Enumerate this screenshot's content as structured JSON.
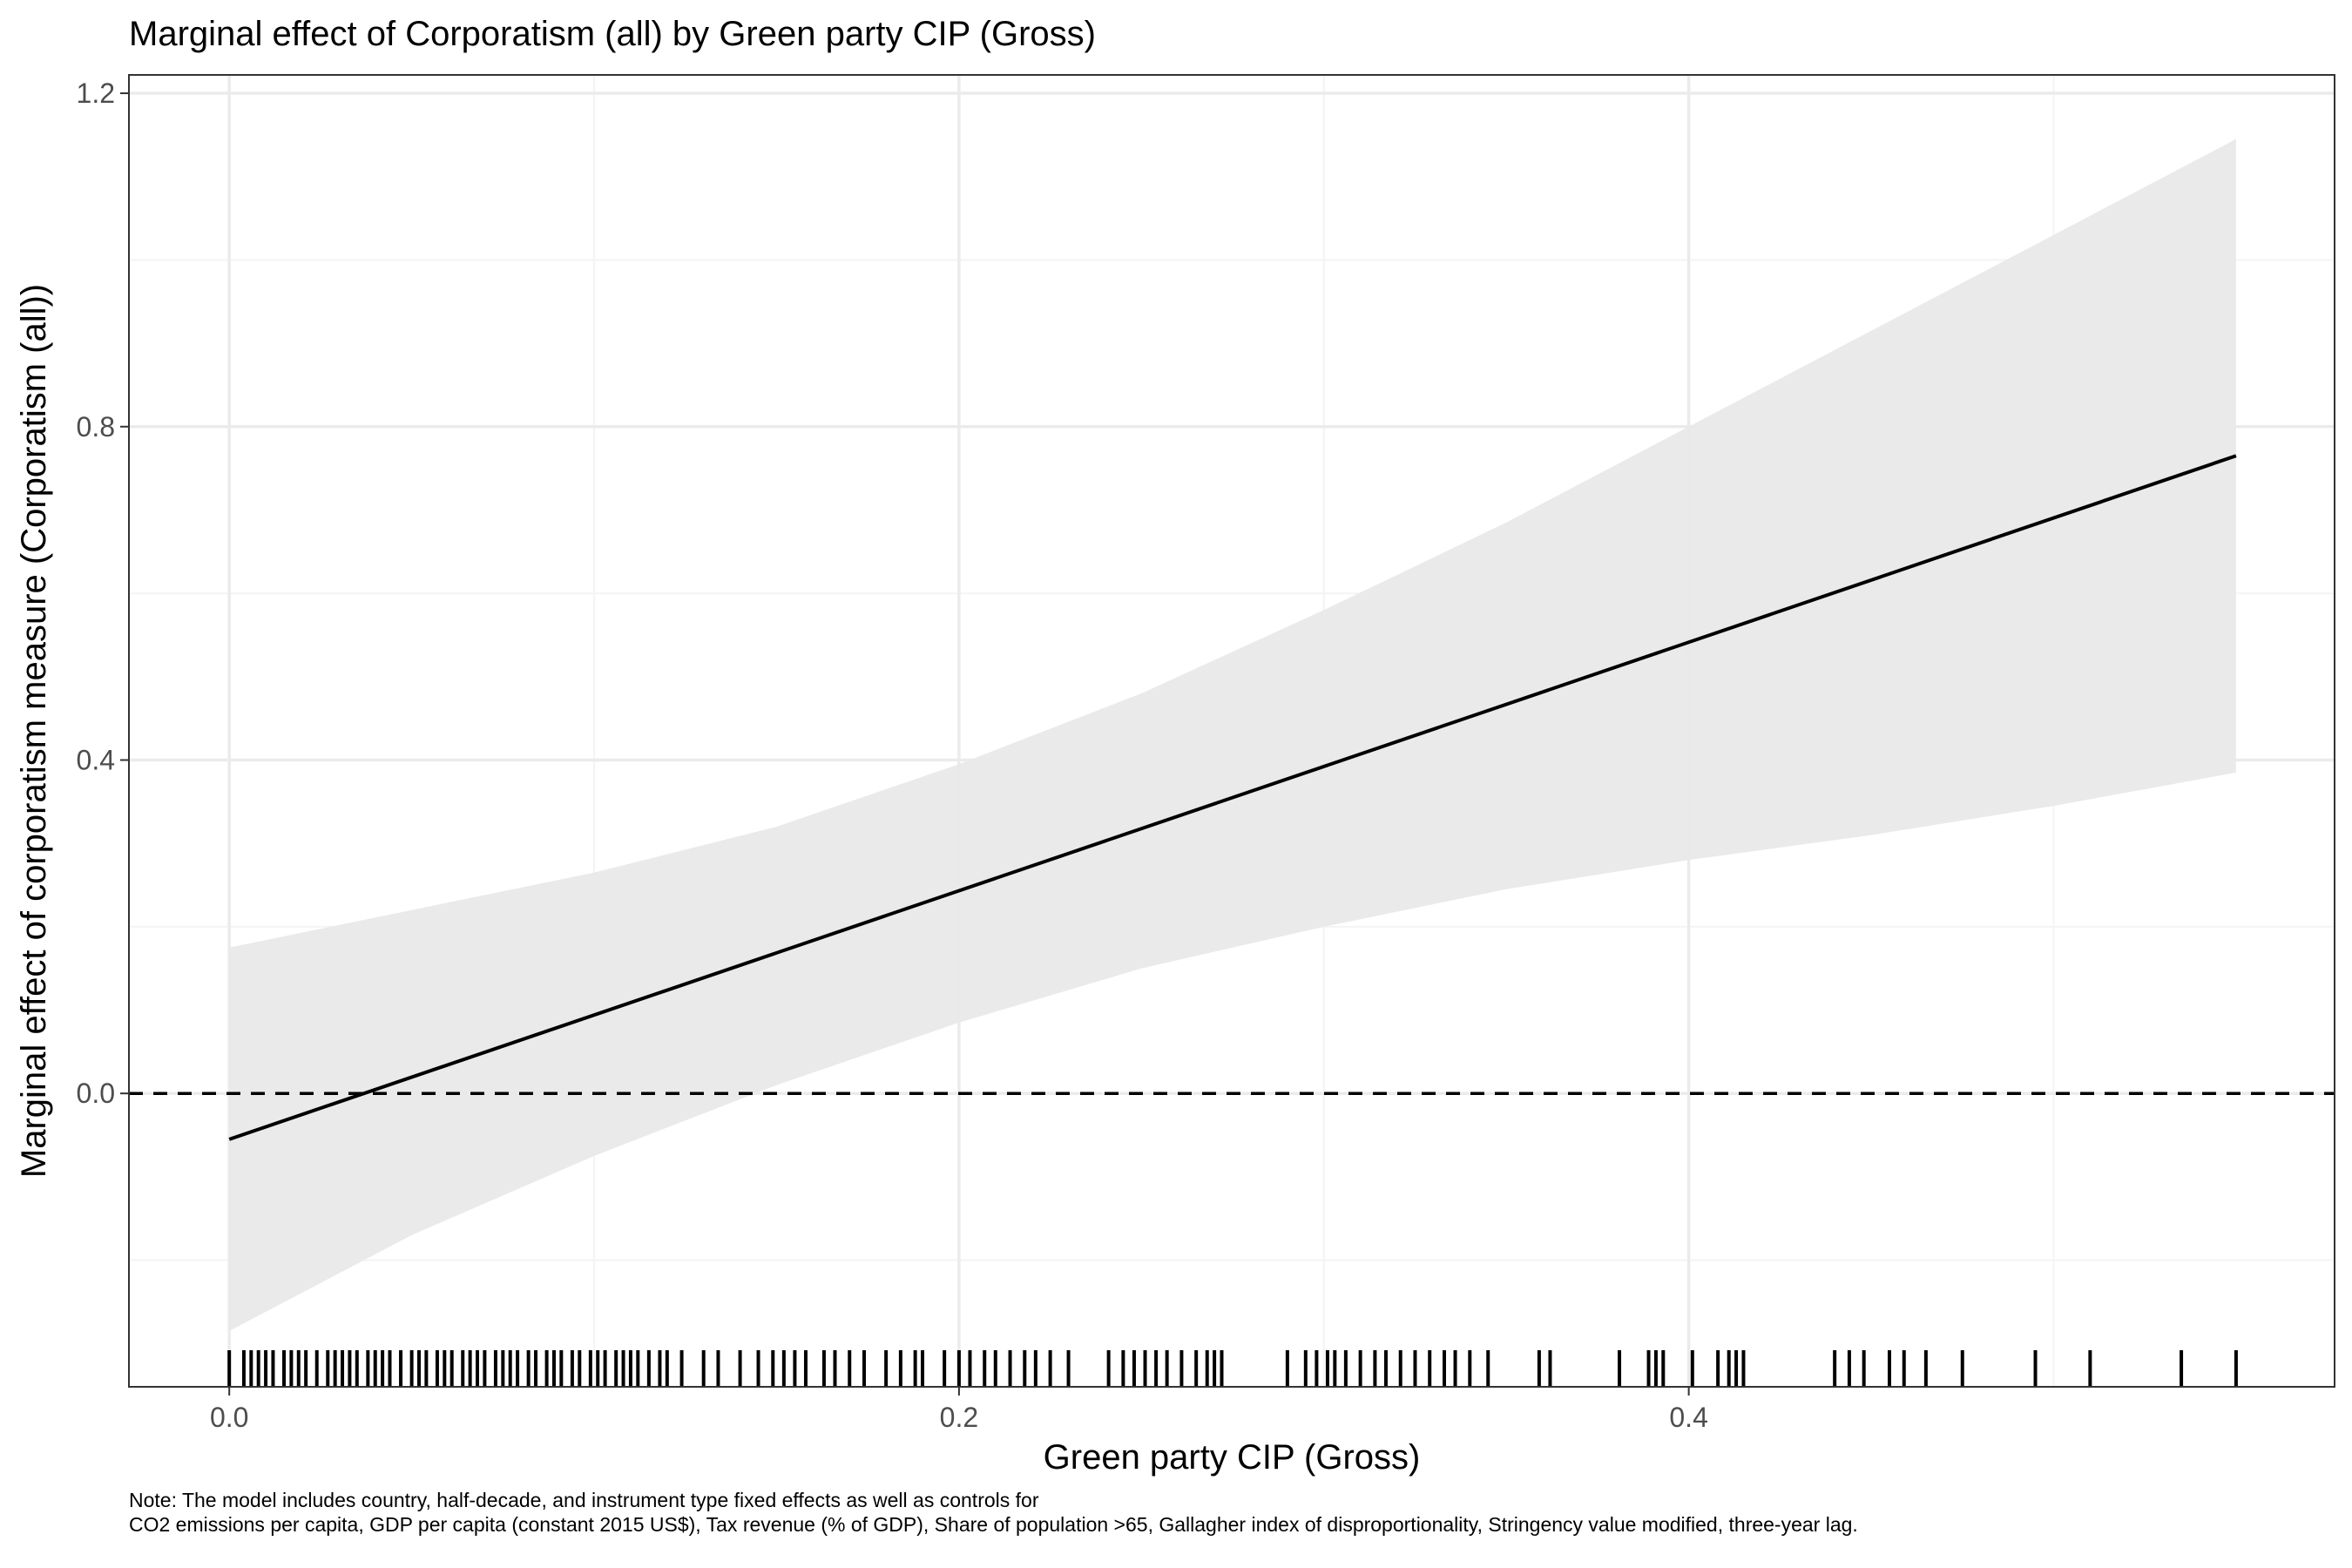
{
  "chart_data": {
    "type": "line",
    "title": "Marginal effect of Corporatism (all) by Green party CIP (Gross)",
    "xlabel": "Green party CIP (Gross)",
    "ylabel": "Marginal effect of corporatism measure (Corporatism (all))",
    "xlim": [
      -0.0275,
      0.577
    ],
    "ylim": [
      -0.352,
      1.222
    ],
    "x_ticks": [
      0.0,
      0.2,
      0.4
    ],
    "x_tick_labels": [
      "0.0",
      "0.2",
      "0.4"
    ],
    "y_ticks": [
      0.0,
      0.4,
      0.8,
      1.2
    ],
    "y_tick_labels": [
      "0.0",
      "0.4",
      "0.8",
      "1.2"
    ],
    "grid": true,
    "reference_line": {
      "y": 0,
      "style": "dashed"
    },
    "effect_line": {
      "x": [
        0.0,
        0.55
      ],
      "y": [
        -0.055,
        0.765
      ]
    },
    "confidence_band": {
      "x": [
        0.0,
        0.05,
        0.1,
        0.15,
        0.2,
        0.25,
        0.3,
        0.35,
        0.4,
        0.45,
        0.5,
        0.55
      ],
      "lower": [
        -0.285,
        -0.17,
        -0.075,
        0.01,
        0.085,
        0.15,
        0.2,
        0.245,
        0.28,
        0.31,
        0.345,
        0.385
      ],
      "upper": [
        0.175,
        0.22,
        0.265,
        0.32,
        0.395,
        0.48,
        0.58,
        0.685,
        0.8,
        0.915,
        1.03,
        1.145
      ]
    },
    "rug_x": [
      0.0,
      0.004,
      0.006,
      0.008,
      0.01,
      0.012,
      0.015,
      0.017,
      0.019,
      0.021,
      0.024,
      0.027,
      0.029,
      0.031,
      0.033,
      0.035,
      0.038,
      0.04,
      0.042,
      0.044,
      0.047,
      0.05,
      0.052,
      0.054,
      0.057,
      0.059,
      0.061,
      0.064,
      0.066,
      0.068,
      0.07,
      0.073,
      0.075,
      0.077,
      0.079,
      0.082,
      0.084,
      0.087,
      0.089,
      0.091,
      0.094,
      0.096,
      0.099,
      0.101,
      0.103,
      0.106,
      0.108,
      0.11,
      0.112,
      0.115,
      0.118,
      0.12,
      0.124,
      0.13,
      0.134,
      0.14,
      0.145,
      0.149,
      0.152,
      0.155,
      0.158,
      0.163,
      0.166,
      0.17,
      0.174,
      0.18,
      0.184,
      0.188,
      0.19,
      0.196,
      0.2,
      0.203,
      0.207,
      0.21,
      0.214,
      0.218,
      0.221,
      0.225,
      0.23,
      0.241,
      0.245,
      0.248,
      0.251,
      0.254,
      0.257,
      0.261,
      0.265,
      0.268,
      0.27,
      0.272,
      0.29,
      0.295,
      0.298,
      0.301,
      0.303,
      0.306,
      0.31,
      0.314,
      0.317,
      0.321,
      0.325,
      0.329,
      0.333,
      0.336,
      0.34,
      0.345,
      0.359,
      0.362,
      0.381,
      0.389,
      0.391,
      0.393,
      0.401,
      0.408,
      0.411,
      0.413,
      0.415,
      0.44,
      0.444,
      0.448,
      0.455,
      0.459,
      0.465,
      0.475,
      0.495,
      0.51,
      0.535,
      0.55
    ],
    "note": [
      "Note: The model includes country, half-decade, and instrument type fixed effects as well as controls for",
      "CO2 emissions per capita, GDP per capita (constant 2015 US$), Tax revenue (% of GDP), Share of population >65, Gallagher index of disproportionality, Stringency value modified, three-year lag."
    ],
    "colors": {
      "band": "#e8e8e8",
      "line": "#000000",
      "grid_major": "#ebebeb",
      "grid_minor": "#f4f4f4",
      "panel_border": "#333333",
      "tick_text": "#4d4d4d"
    }
  }
}
